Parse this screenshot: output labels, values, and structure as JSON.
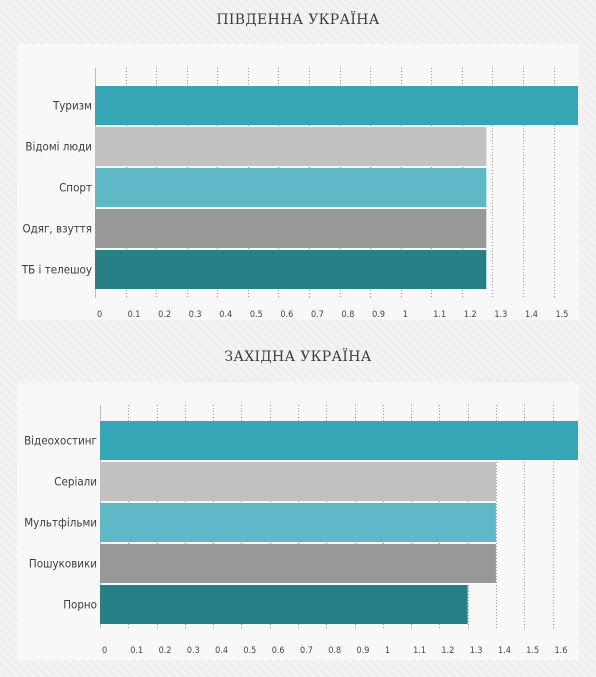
{
  "chart_data": [
    {
      "type": "bar",
      "orientation": "horizontal",
      "title": "ПІВДЕННА УКРАЇНА",
      "categories": [
        "Туризм",
        "Відомі люди",
        "Спорт",
        "Одяг, взуття",
        "ТБ і телешоу"
      ],
      "values": [
        1.58,
        1.28,
        1.28,
        1.28,
        1.28
      ],
      "ticks": [
        "0",
        "0.1",
        "0.2",
        "0.3",
        "0.4",
        "0.5",
        "0.6",
        "0.7",
        "0.8",
        "0.9",
        "1",
        "1.1",
        "1.2",
        "1.3",
        "1.4",
        "1.5"
      ],
      "xlim": [
        0,
        1.58
      ],
      "grid": "vertical-dotted",
      "legend": "none"
    },
    {
      "type": "bar",
      "orientation": "horizontal",
      "title": "ЗАХІДНА УКРАЇНА",
      "categories": [
        "Відеохостинг",
        "Серіали",
        "Мультфільми",
        "Пошуковики",
        "Порно"
      ],
      "values": [
        1.69,
        1.4,
        1.4,
        1.4,
        1.3
      ],
      "ticks": [
        "0",
        "0.1",
        "0.2",
        "0.3",
        "0.4",
        "0.5",
        "0.6",
        "0.7",
        "0.8",
        "0.9",
        "1",
        "1.1",
        "1.2",
        "1.3",
        "1.4",
        "1.5",
        "1.6"
      ],
      "xlim": [
        0,
        1.69
      ],
      "grid": "vertical-dotted",
      "legend": "none"
    }
  ],
  "colors": [
    "#36a6b6",
    "#c2c2c2",
    "#5fb8c5",
    "#989898",
    "#287f86"
  ]
}
